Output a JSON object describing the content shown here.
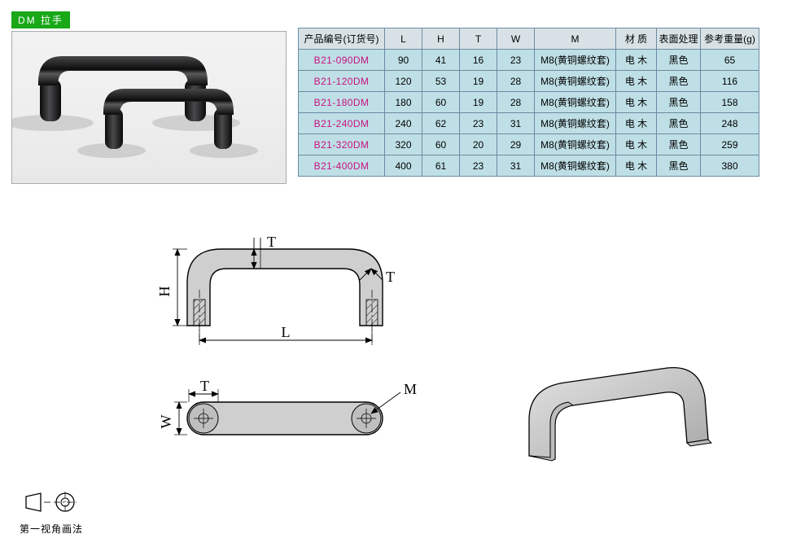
{
  "tag_label": "DM 拉手",
  "table": {
    "headers": [
      "产品编号(订货号)",
      "L",
      "H",
      "T",
      "W",
      "M",
      "材 质",
      "表面处理",
      "参考重量(g)"
    ],
    "rows": [
      [
        "B21-090DM",
        "90",
        "41",
        "16",
        "23",
        "M8(黄铜螺纹套)",
        "电 木",
        "黑色",
        "65"
      ],
      [
        "B21-120DM",
        "120",
        "53",
        "19",
        "28",
        "M8(黄铜螺纹套)",
        "电 木",
        "黑色",
        "116"
      ],
      [
        "B21-180DM",
        "180",
        "60",
        "19",
        "28",
        "M8(黄铜螺纹套)",
        "电 木",
        "黑色",
        "158"
      ],
      [
        "B21-240DM",
        "240",
        "62",
        "23",
        "31",
        "M8(黄铜螺纹套)",
        "电 木",
        "黑色",
        "248"
      ],
      [
        "B21-320DM",
        "320",
        "60",
        "20",
        "29",
        "M8(黄铜螺纹套)",
        "电 木",
        "黑色",
        "259"
      ],
      [
        "B21-400DM",
        "400",
        "61",
        "23",
        "31",
        "M8(黄铜螺纹套)",
        "电 木",
        "黑色",
        "380"
      ]
    ]
  },
  "dims": {
    "L": "L",
    "H": "H",
    "T": "T",
    "T2": "T",
    "T3": "T",
    "W": "W",
    "M": "M"
  },
  "projection_label": "第一视角画法",
  "colors": {
    "table_border": "#6a8ba2",
    "table_header_bg": "#d8e2e6",
    "table_cell_bg": "#bfdfe6",
    "partnum": "#c7117e",
    "tag_bg": "#18a818",
    "drawing_fill": "#cfcfcf",
    "drawing_stroke": "#000000",
    "photo_bg": "#efefef"
  }
}
